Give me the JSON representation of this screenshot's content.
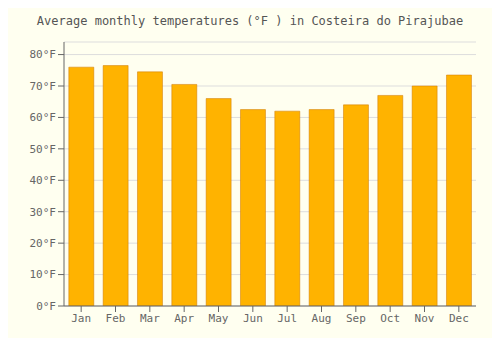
{
  "chart_data": {
    "type": "bar",
    "title": "Average monthly temperatures (°F ) in Costeira do Pirajubae",
    "categories": [
      "Jan",
      "Feb",
      "Mar",
      "Apr",
      "May",
      "Jun",
      "Jul",
      "Aug",
      "Sep",
      "Oct",
      "Nov",
      "Dec"
    ],
    "values": [
      76,
      76.5,
      74.5,
      70.5,
      66,
      62.5,
      62,
      62.5,
      64,
      67,
      70,
      73.5
    ],
    "color": "#FFB300",
    "ylim": [
      0,
      84
    ],
    "yticks": [
      {
        "value": 0,
        "label": "0°F"
      },
      {
        "value": 10,
        "label": "10°F"
      },
      {
        "value": 20,
        "label": "20°F"
      },
      {
        "value": 30,
        "label": "30°F"
      },
      {
        "value": 40,
        "label": "40°F"
      },
      {
        "value": 50,
        "label": "50°F"
      },
      {
        "value": 60,
        "label": "60°F"
      },
      {
        "value": 70,
        "label": "70°F"
      },
      {
        "value": 80,
        "label": "80°F"
      }
    ],
    "grid": true
  }
}
